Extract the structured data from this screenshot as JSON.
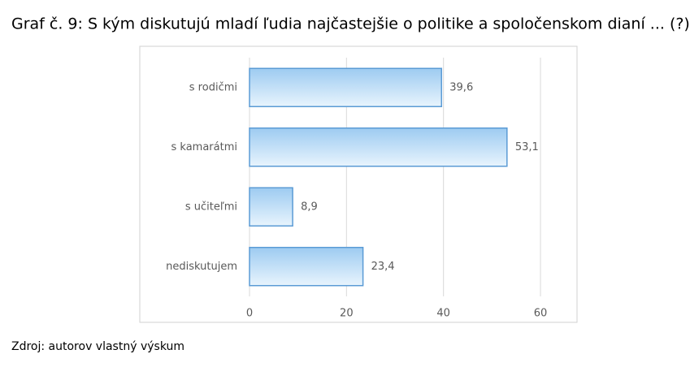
{
  "chart_data": {
    "type": "hbar",
    "title": "Graf č. 9: S kým diskutujú mladí ľudia najčastejšie o politike a spoločenskom dianí ... (?)",
    "source": "Zdroj: autorov vlastný výskum",
    "categories": [
      "s rodičmi",
      "s kamarátmi",
      "s učiteľmi",
      "nediskutujem"
    ],
    "values": [
      39.6,
      53.1,
      8.9,
      23.4
    ],
    "value_labels": [
      "39,6",
      "53,1",
      "8,9",
      "23,4"
    ],
    "color": "#5b9bd5",
    "xlim": [
      0,
      60
    ],
    "xticks": [
      0,
      20,
      40,
      60
    ],
    "grid": true
  }
}
